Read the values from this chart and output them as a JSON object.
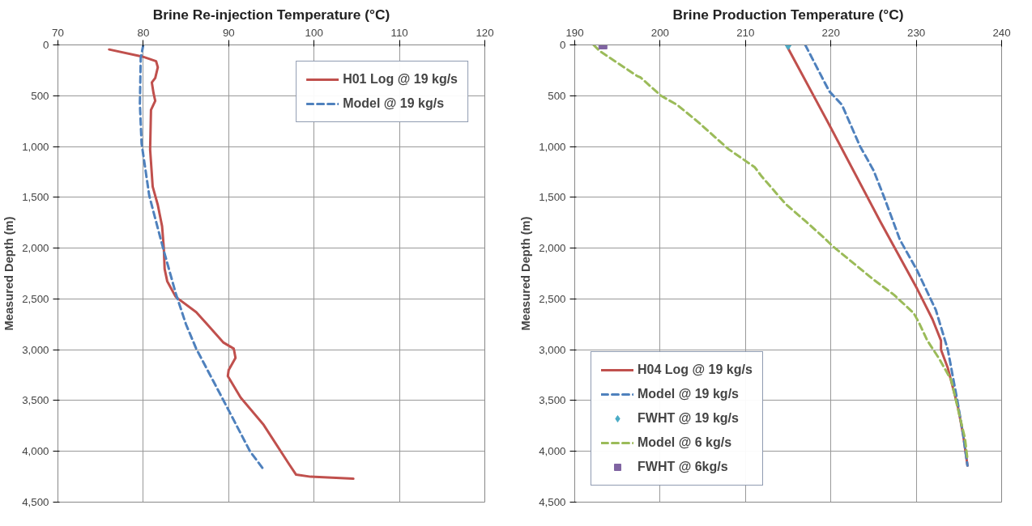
{
  "chart_data": [
    {
      "type": "line",
      "title": "Brine Re-injection Temperature (°C)",
      "ylabel": "Measured Depth (m)",
      "xlim": [
        70,
        120
      ],
      "xticks": [
        70,
        80,
        90,
        100,
        110,
        120
      ],
      "ylim": [
        4500,
        0
      ],
      "yticks": [
        0,
        500,
        {
          "value": 1000,
          "label": "1,000"
        },
        {
          "value": 1500,
          "label": "1,500"
        },
        {
          "value": 2000,
          "label": "2,000"
        },
        {
          "value": 2500,
          "label": "2,500"
        },
        {
          "value": 3000,
          "label": "3,000"
        },
        {
          "value": 3500,
          "label": "3,500"
        },
        {
          "value": 4000,
          "label": "4,000"
        },
        {
          "value": 4500,
          "label": "4,500"
        }
      ],
      "grid": true,
      "legend": "top right",
      "series": [
        {
          "name": "H01 Log @ 19 kg/s",
          "color": "#c0504d",
          "line_style": "solid",
          "x": [
            76.0,
            79.9,
            81.5,
            81.7,
            81.4,
            81.0,
            81.2,
            81.4,
            80.9,
            80.8,
            81.1,
            81.7,
            82.2,
            82.4,
            82.5,
            82.8,
            83.8,
            86.2,
            89.4,
            90.6,
            90.8,
            90.0,
            89.9,
            91.4,
            94.1,
            97.1,
            97.9,
            99.6,
            104.6
          ],
          "values": [
            45,
            115,
            160,
            220,
            325,
            370,
            475,
            550,
            640,
            1030,
            1395,
            1575,
            1785,
            1995,
            2205,
            2325,
            2480,
            2630,
            2930,
            2990,
            3080,
            3200,
            3260,
            3470,
            3740,
            4130,
            4230,
            4250,
            4270
          ]
        },
        {
          "name": "Model @ 19 kg/s",
          "color": "#4f81bd",
          "line_style": "dashed",
          "x": [
            80.0,
            79.7,
            79.6,
            79.8,
            80.7,
            82.3,
            83.8,
            85.0,
            86.2,
            89.4,
            92.5,
            94.1
          ],
          "values": [
            0,
            130,
            580,
            970,
            1485,
            1995,
            2445,
            2750,
            2990,
            3500,
            4000,
            4180
          ]
        }
      ]
    },
    {
      "type": "line",
      "title": "Brine Production Temperature (°C)",
      "ylabel": "Measured Depth (m)",
      "xlim": [
        190,
        240
      ],
      "xticks": [
        190,
        200,
        210,
        220,
        230,
        240
      ],
      "ylim": [
        4500,
        0
      ],
      "yticks": [
        0,
        500,
        {
          "value": 1000,
          "label": "1,000"
        },
        {
          "value": 1500,
          "label": "1,500"
        },
        {
          "value": 2000,
          "label": "2,000"
        },
        {
          "value": 2500,
          "label": "2,500"
        },
        {
          "value": 3000,
          "label": "3,000"
        },
        {
          "value": 3500,
          "label": "3,500"
        },
        {
          "value": 4000,
          "label": "4,000"
        },
        {
          "value": 4500,
          "label": "4,500"
        }
      ],
      "grid": true,
      "legend": "bottom left",
      "series": [
        {
          "name": "H04 Log @ 19 kg/s",
          "color": "#c0504d",
          "line_style": "solid",
          "x": [
            214.9,
            219.8,
            225.8,
            230.1,
            231.9,
            232.9,
            232.9,
            233.7,
            234.9,
            235.5,
            236.0
          ],
          "values": [
            20,
            785,
            1740,
            2400,
            2700,
            2910,
            3000,
            3180,
            3570,
            3840,
            4140
          ]
        },
        {
          "name": "Model @ 19 kg/s",
          "color": "#4f81bd",
          "line_style": "dashed",
          "x": [
            217.0,
            219.8,
            221.3,
            223.4,
            225.0,
            226.2,
            228.1,
            230.1,
            232.3,
            233.7,
            234.9,
            235.5,
            236.0
          ],
          "values": [
            0,
            455,
            590,
            995,
            1235,
            1490,
            1920,
            2220,
            2610,
            3000,
            3540,
            3840,
            4140
          ]
        },
        {
          "name": "FWHT @ 19 kg/s",
          "type": "scatter",
          "marker": "diamond",
          "color": "#4bacc6",
          "x": [
            215
          ],
          "values": [
            0
          ]
        },
        {
          "name": "Model @ 6 kg/s",
          "color": "#9bbb59",
          "line_style": "dashed",
          "x": [
            192.2,
            193.0,
            197.3,
            197.7,
            200.1,
            202.0,
            204.4,
            208.0,
            211.1,
            211.9,
            214.7,
            217.1,
            219.1,
            220.2,
            225.0,
            227.4,
            229.7,
            230.3,
            231.3,
            232.7,
            234.1,
            235.1,
            235.7,
            236.0
          ],
          "values": [
            0,
            65,
            305,
            320,
            500,
            590,
            755,
            1025,
            1205,
            1295,
            1565,
            1740,
            1890,
            1980,
            2310,
            2460,
            2640,
            2730,
            2910,
            3090,
            3300,
            3660,
            3870,
            4080
          ]
        },
        {
          "name": "FWHT @ 6kg/s",
          "type": "scatter",
          "marker": "square",
          "color": "#8064a2",
          "x": [
            193.3
          ],
          "values": [
            0
          ]
        }
      ]
    }
  ]
}
